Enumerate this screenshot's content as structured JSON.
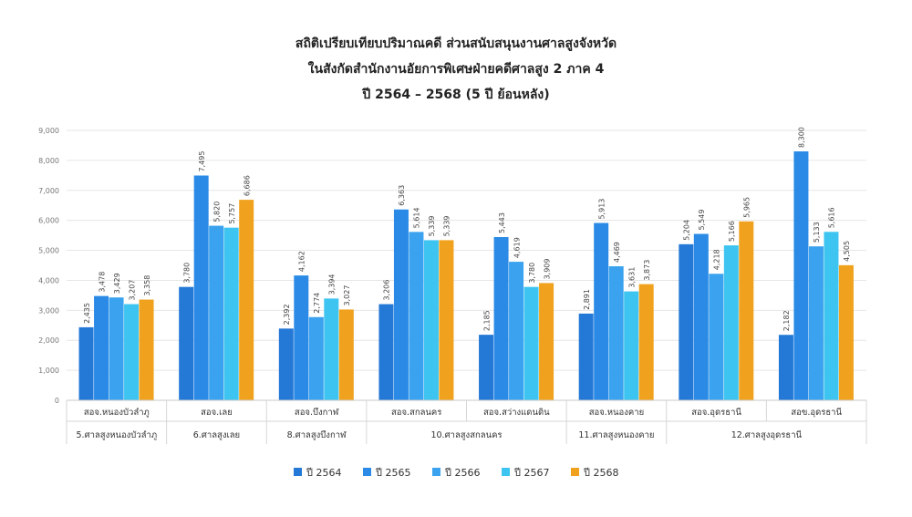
{
  "chart_data": {
    "type": "bar",
    "title": [
      "สถิติเปรียบเทียบปริมาณคดี ส่วนสนับสนุนงานศาลสูงจังหวัด",
      "ในสังกัดสำนักงานอัยการพิเศษฝ่ายคดีศาลสูง 2 ภาค 4",
      "ปี 2564 – 2568 (5 ปี ย้อนหลัง)"
    ],
    "ylim": [
      0,
      9000
    ],
    "yticks": [
      "0",
      "1,000",
      "2,000",
      "3,000",
      "4,000",
      "5,000",
      "6,000",
      "7,000",
      "8,000",
      "9,000"
    ],
    "categories": [
      "สอจ.หนองบัวลำภู",
      "สอจ.เลย",
      "สอจ.บึงกาฬ",
      "สอจ.สกลนคร",
      "สอจ.สว่างแดนดิน",
      "สอจ.หนองคาย",
      "สอจ.อุดรธานี",
      "สอข.อุดรธานี"
    ],
    "groups": [
      {
        "label": "5.ศาลสูงหนองบัวลำภู",
        "span": 1
      },
      {
        "label": "6.ศาลสูงเลย",
        "span": 1
      },
      {
        "label": "8.ศาลสูงบึงกาฬ",
        "span": 1
      },
      {
        "label": "10.ศาลสูงสกลนคร",
        "span": 2
      },
      {
        "label": "11.ศาลสูงหนองคาย",
        "span": 1
      },
      {
        "label": "12.ศาลสูงอุดรธานี",
        "span": 2
      }
    ],
    "series": [
      {
        "name": "ปี 2564",
        "color": "#2478d6",
        "values": [
          2435,
          3780,
          2392,
          3206,
          2185,
          2891,
          5204,
          2182
        ],
        "labels": [
          "2,435",
          "3,780",
          "2,392",
          "3,206",
          "2,185",
          "2,891",
          "5,204",
          "2,182"
        ]
      },
      {
        "name": "ปี 2565",
        "color": "#2a8ae6",
        "values": [
          3478,
          7495,
          4162,
          6363,
          5443,
          5913,
          5549,
          8300
        ],
        "labels": [
          "3,478",
          "7,495",
          "4,162",
          "6,363",
          "5,443",
          "5,913",
          "5,549",
          "8,300"
        ]
      },
      {
        "name": "ปี 2566",
        "color": "#3aa2ee",
        "values": [
          3429,
          5820,
          2774,
          5614,
          4619,
          4469,
          4218,
          5133
        ],
        "labels": [
          "3,429",
          "5,820",
          "2,774",
          "5,614",
          "4,619",
          "4,469",
          "4,218",
          "5,133"
        ]
      },
      {
        "name": "ปี 2567",
        "color": "#3dc4f0",
        "values": [
          3207,
          5757,
          3394,
          5339,
          3780,
          3631,
          5166,
          5616
        ],
        "labels": [
          "3,207",
          "5,757",
          "3,394",
          "5,339",
          "3,780",
          "3,631",
          "5,166",
          "5,616"
        ]
      },
      {
        "name": "ปี 2568",
        "color": "#f0a21e",
        "values": [
          3358,
          6686,
          3027,
          5339,
          3909,
          3873,
          5965,
          4505
        ],
        "labels": [
          "3,358",
          "6,686",
          "3,027",
          "5,339",
          "3,909",
          "3,873",
          "5,965",
          "4,505"
        ]
      }
    ],
    "legend_position": "bottom",
    "grid": true
  }
}
